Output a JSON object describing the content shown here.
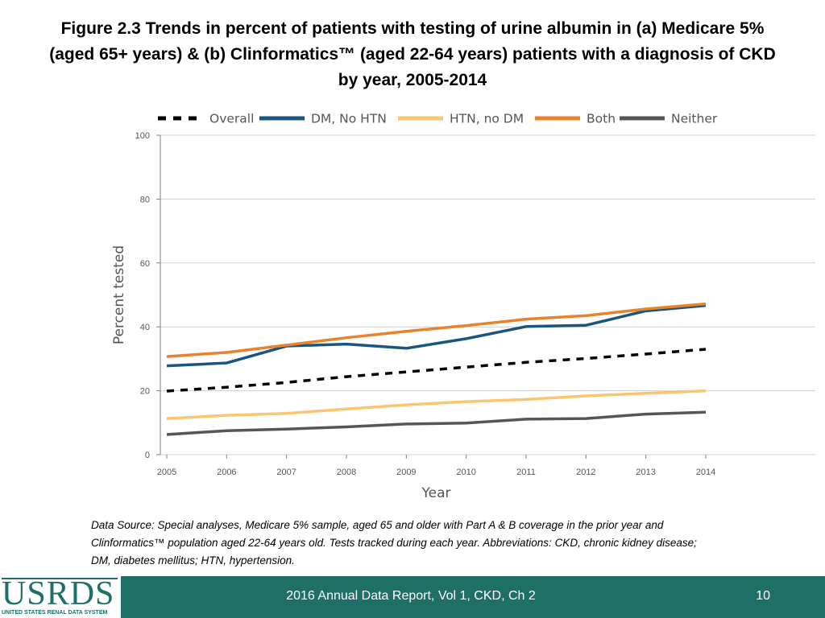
{
  "title_lines": [
    "Figure 2.3  Trends in percent of patients with testing of urine albumin in (a) Medicare 5%",
    "(aged 65+ years) & (b) Clinformatics™ (aged 22-64 years) patients with a diagnosis of CKD",
    "by year, 2005-2014"
  ],
  "chart_data": {
    "type": "line",
    "title": "",
    "xlabel": "Year",
    "ylabel": "Percent tested",
    "x": [
      "2005",
      "2006",
      "2007",
      "2008",
      "2009",
      "2010",
      "2011",
      "2012",
      "2013",
      "2014"
    ],
    "ylim": [
      0,
      100
    ],
    "yticks": [
      0,
      20,
      40,
      60,
      80,
      100
    ],
    "grid": true,
    "legend": "top",
    "series": [
      {
        "name": "Overall",
        "color": "#000000",
        "dashed": true,
        "values": [
          19.9,
          21.1,
          22.6,
          24.4,
          25.9,
          27.4,
          28.9,
          30.1,
          31.5,
          33.0
        ]
      },
      {
        "name": "DM, No HTN",
        "color": "#1a557f",
        "dashed": false,
        "values": [
          27.8,
          28.7,
          34.0,
          34.6,
          33.3,
          36.3,
          40.1,
          40.5,
          45.0,
          46.7
        ]
      },
      {
        "name": "HTN, no DM",
        "color": "#f9c56f",
        "dashed": false,
        "values": [
          11.3,
          12.3,
          12.9,
          14.3,
          15.6,
          16.6,
          17.3,
          18.4,
          19.2,
          20.0
        ]
      },
      {
        "name": "Both",
        "color": "#e8832c",
        "dashed": false,
        "values": [
          30.7,
          32.0,
          34.3,
          36.6,
          38.6,
          40.4,
          42.4,
          43.5,
          45.6,
          47.2
        ]
      },
      {
        "name": "Neither",
        "color": "#5a5550",
        "dashed": false,
        "values": [
          6.3,
          7.5,
          8.0,
          8.7,
          9.6,
          9.9,
          11.1,
          11.3,
          12.7,
          13.3
        ]
      }
    ]
  },
  "source_lines": [
    "Data Source: Special analyses, Medicare 5% sample, aged 65 and older with Part A & B coverage in the prior year and",
    "Clinformatics™ population aged 22-64 years old. Tests tracked during each year. Abbreviations: CKD, chronic kidney disease;",
    "DM, diabetes mellitus; HTN, hypertension."
  ],
  "footer": {
    "report": "2016 Annual Data Report, Vol 1, CKD, Ch 2",
    "page": "10",
    "logo_text": "USRDS",
    "logo_subtitle": "UNITED STATES RENAL DATA SYSTEM"
  }
}
